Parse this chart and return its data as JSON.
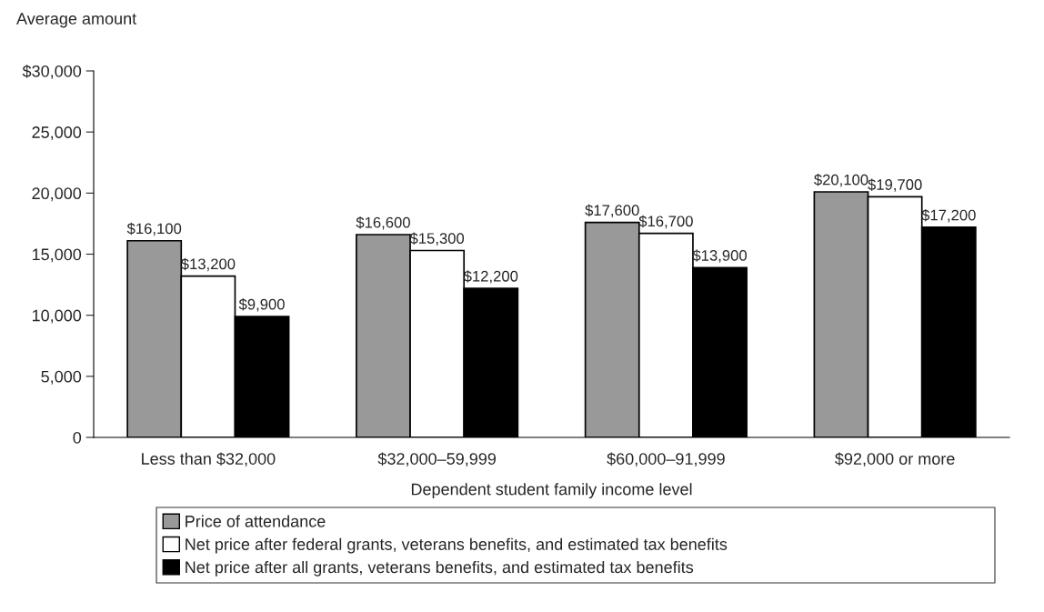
{
  "chart_data": {
    "type": "bar",
    "ylabel": "Average amount",
    "xlabel": "Dependent student family income level",
    "categories": [
      "Less than $32,000",
      "$32,000–59,999",
      "$60,000–91,999",
      "$92,000 or more"
    ],
    "series": [
      {
        "name": "Price of attendance",
        "color": "#999999",
        "values": [
          16100,
          16600,
          17600,
          20100
        ],
        "value_labels": [
          "$16,100",
          "$16,600",
          "$17,600",
          "$20,100"
        ]
      },
      {
        "name": "Net price after federal grants, veterans benefits, and estimated tax benefits",
        "color": "#ffffff",
        "values": [
          13200,
          15300,
          16700,
          19700
        ],
        "value_labels": [
          "$13,200",
          "$15,300",
          "$16,700",
          "$19,700"
        ]
      },
      {
        "name": "Net price after all grants, veterans benefits, and estimated tax benefits",
        "color": "#000000",
        "values": [
          9900,
          12200,
          13900,
          17200
        ],
        "value_labels": [
          "$9,900",
          "$12,200",
          "$13,900",
          "$17,200"
        ]
      }
    ],
    "ylim": [
      0,
      30000
    ],
    "yticks": [
      0,
      {
        "value": 5000,
        "label": "5,000"
      },
      {
        "value": 10000,
        "label": "10,000"
      },
      {
        "value": 15000,
        "label": "15,000"
      },
      {
        "value": 20000,
        "label": "20,000"
      },
      {
        "value": 25000,
        "label": "25,000"
      },
      {
        "value": 30000,
        "label": "$30,000"
      }
    ],
    "grid": false,
    "legend": "bottom"
  }
}
